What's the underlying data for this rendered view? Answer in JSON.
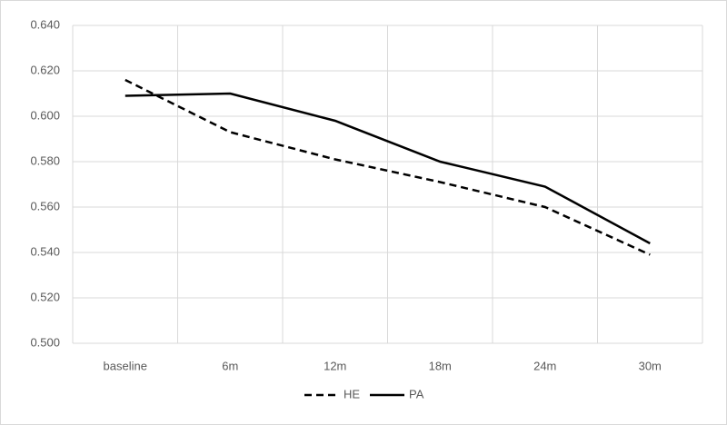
{
  "chart_data": {
    "type": "line",
    "categories": [
      "baseline",
      "6m",
      "12m",
      "18m",
      "24m",
      "30m"
    ],
    "series": [
      {
        "name": "HE",
        "color": "#000000",
        "line_style": "dashed",
        "values": [
          0.616,
          0.593,
          0.581,
          0.571,
          0.56,
          0.539
        ]
      },
      {
        "name": "PA",
        "color": "#000000",
        "line_style": "solid",
        "values": [
          0.609,
          0.61,
          0.598,
          0.58,
          0.569,
          0.544
        ]
      }
    ],
    "ylim": [
      0.5,
      0.64
    ],
    "yticks": [
      {
        "value": 0.5,
        "label": "0.500"
      },
      {
        "value": 0.52,
        "label": "0.520"
      },
      {
        "value": 0.54,
        "label": "0.540"
      },
      {
        "value": 0.56,
        "label": "0.560"
      },
      {
        "value": 0.58,
        "label": "0.580"
      },
      {
        "value": 0.6,
        "label": "0.600"
      },
      {
        "value": 0.62,
        "label": "0.620"
      },
      {
        "value": 0.64,
        "label": "0.640"
      }
    ],
    "grid": true,
    "legend": "bottom"
  }
}
